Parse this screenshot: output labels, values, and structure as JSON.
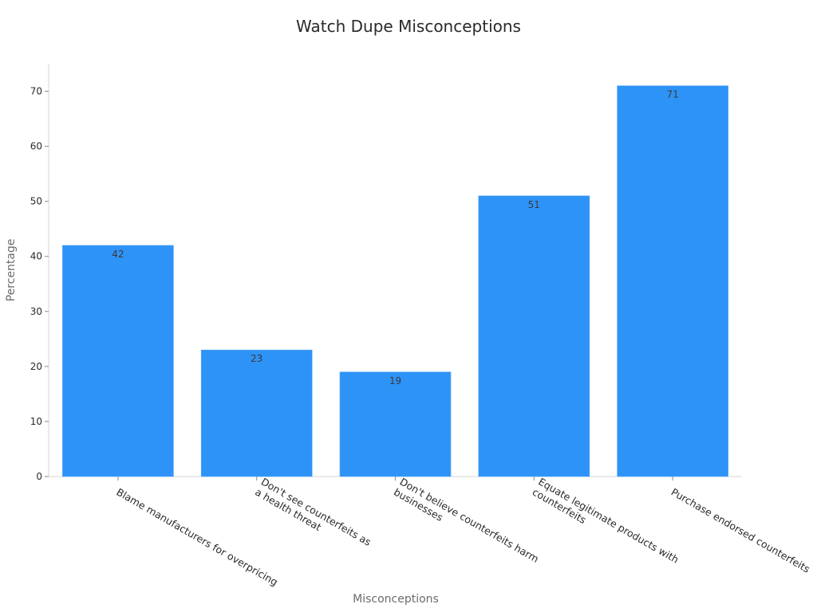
{
  "chart_data": {
    "type": "bar",
    "title": "Watch Dupe Misconceptions",
    "xlabel": "Misconceptions",
    "ylabel": "Percentage",
    "categories": [
      "Blame manufacturers for overpricing",
      "Don't see counterfeits as a health threat",
      "Don't believe counterfeits harm businesses",
      "Equate legitimate products with counterfeits",
      "Purchase endorsed counterfeits"
    ],
    "category_lines": [
      [
        "Blame manufacturers for overpricing"
      ],
      [
        "Don't see counterfeits as",
        "a health threat"
      ],
      [
        "Don't believe counterfeits harm",
        "businesses"
      ],
      [
        "Equate legitimate products with",
        "counterfeits"
      ],
      [
        "Purchase endorsed counterfeits"
      ]
    ],
    "values": [
      42,
      23,
      19,
      51,
      71
    ],
    "ylim": [
      0,
      75
    ],
    "yticks": [
      0,
      10,
      20,
      30,
      40,
      50,
      60,
      70
    ],
    "grid": false,
    "legend": "none",
    "bar_color": "#2e93f7",
    "data_labels": true
  }
}
